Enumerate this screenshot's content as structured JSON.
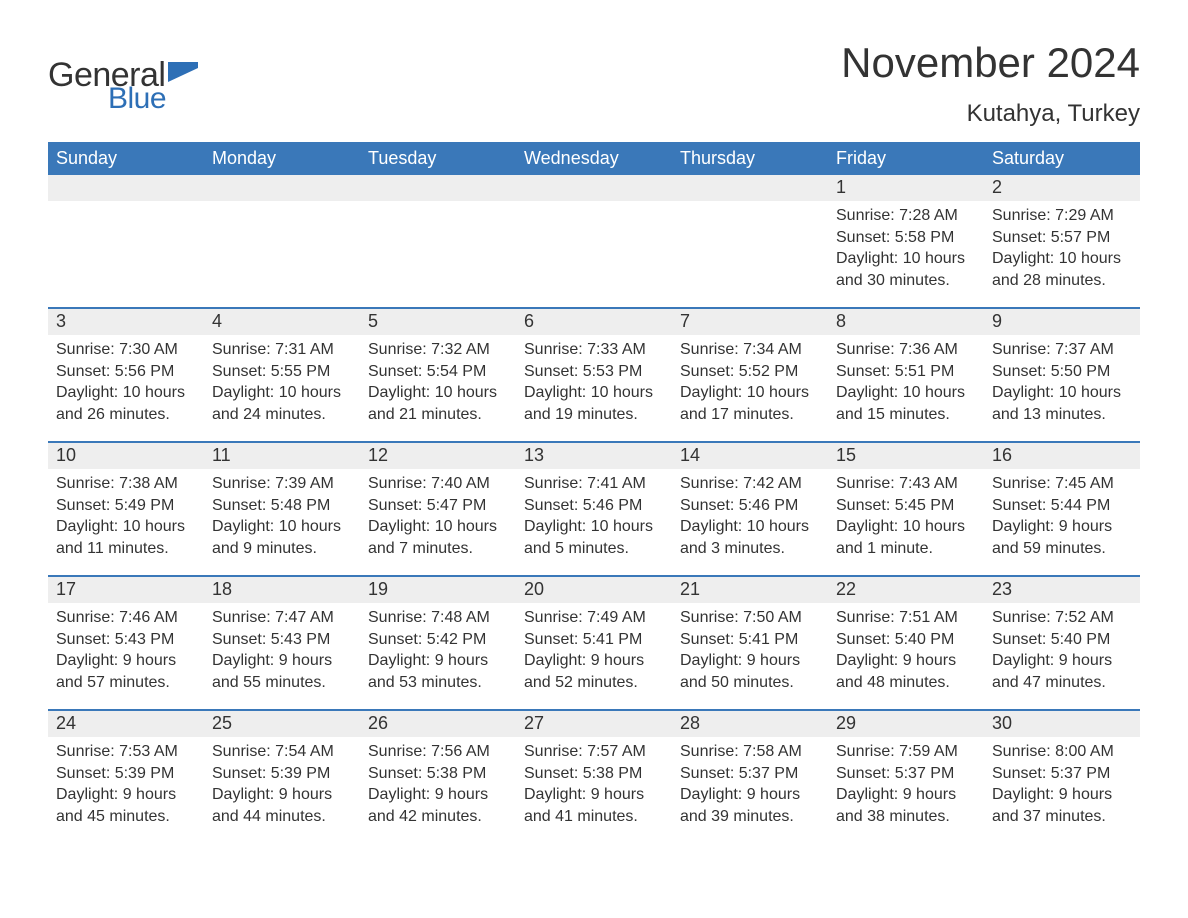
{
  "logo": {
    "word1": "General",
    "word2": "Blue",
    "flag_color": "#2d6fb6",
    "text_color_dark": "#333333",
    "text_color_blue": "#2d6fb6"
  },
  "title": "November 2024",
  "location": "Kutahya, Turkey",
  "colors": {
    "header_bg": "#3a78b9",
    "header_text": "#ffffff",
    "daynum_bg": "#eeeeee",
    "page_bg": "#ffffff",
    "body_text": "#333333",
    "divider": "#3a78b9"
  },
  "weekdays": [
    "Sunday",
    "Monday",
    "Tuesday",
    "Wednesday",
    "Thursday",
    "Friday",
    "Saturday"
  ],
  "weeks": [
    [
      {
        "n": "",
        "sunrise": "",
        "sunset": "",
        "daylight": ""
      },
      {
        "n": "",
        "sunrise": "",
        "sunset": "",
        "daylight": ""
      },
      {
        "n": "",
        "sunrise": "",
        "sunset": "",
        "daylight": ""
      },
      {
        "n": "",
        "sunrise": "",
        "sunset": "",
        "daylight": ""
      },
      {
        "n": "",
        "sunrise": "",
        "sunset": "",
        "daylight": ""
      },
      {
        "n": "1",
        "sunrise": "Sunrise: 7:28 AM",
        "sunset": "Sunset: 5:58 PM",
        "daylight": "Daylight: 10 hours and 30 minutes."
      },
      {
        "n": "2",
        "sunrise": "Sunrise: 7:29 AM",
        "sunset": "Sunset: 5:57 PM",
        "daylight": "Daylight: 10 hours and 28 minutes."
      }
    ],
    [
      {
        "n": "3",
        "sunrise": "Sunrise: 7:30 AM",
        "sunset": "Sunset: 5:56 PM",
        "daylight": "Daylight: 10 hours and 26 minutes."
      },
      {
        "n": "4",
        "sunrise": "Sunrise: 7:31 AM",
        "sunset": "Sunset: 5:55 PM",
        "daylight": "Daylight: 10 hours and 24 minutes."
      },
      {
        "n": "5",
        "sunrise": "Sunrise: 7:32 AM",
        "sunset": "Sunset: 5:54 PM",
        "daylight": "Daylight: 10 hours and 21 minutes."
      },
      {
        "n": "6",
        "sunrise": "Sunrise: 7:33 AM",
        "sunset": "Sunset: 5:53 PM",
        "daylight": "Daylight: 10 hours and 19 minutes."
      },
      {
        "n": "7",
        "sunrise": "Sunrise: 7:34 AM",
        "sunset": "Sunset: 5:52 PM",
        "daylight": "Daylight: 10 hours and 17 minutes."
      },
      {
        "n": "8",
        "sunrise": "Sunrise: 7:36 AM",
        "sunset": "Sunset: 5:51 PM",
        "daylight": "Daylight: 10 hours and 15 minutes."
      },
      {
        "n": "9",
        "sunrise": "Sunrise: 7:37 AM",
        "sunset": "Sunset: 5:50 PM",
        "daylight": "Daylight: 10 hours and 13 minutes."
      }
    ],
    [
      {
        "n": "10",
        "sunrise": "Sunrise: 7:38 AM",
        "sunset": "Sunset: 5:49 PM",
        "daylight": "Daylight: 10 hours and 11 minutes."
      },
      {
        "n": "11",
        "sunrise": "Sunrise: 7:39 AM",
        "sunset": "Sunset: 5:48 PM",
        "daylight": "Daylight: 10 hours and 9 minutes."
      },
      {
        "n": "12",
        "sunrise": "Sunrise: 7:40 AM",
        "sunset": "Sunset: 5:47 PM",
        "daylight": "Daylight: 10 hours and 7 minutes."
      },
      {
        "n": "13",
        "sunrise": "Sunrise: 7:41 AM",
        "sunset": "Sunset: 5:46 PM",
        "daylight": "Daylight: 10 hours and 5 minutes."
      },
      {
        "n": "14",
        "sunrise": "Sunrise: 7:42 AM",
        "sunset": "Sunset: 5:46 PM",
        "daylight": "Daylight: 10 hours and 3 minutes."
      },
      {
        "n": "15",
        "sunrise": "Sunrise: 7:43 AM",
        "sunset": "Sunset: 5:45 PM",
        "daylight": "Daylight: 10 hours and 1 minute."
      },
      {
        "n": "16",
        "sunrise": "Sunrise: 7:45 AM",
        "sunset": "Sunset: 5:44 PM",
        "daylight": "Daylight: 9 hours and 59 minutes."
      }
    ],
    [
      {
        "n": "17",
        "sunrise": "Sunrise: 7:46 AM",
        "sunset": "Sunset: 5:43 PM",
        "daylight": "Daylight: 9 hours and 57 minutes."
      },
      {
        "n": "18",
        "sunrise": "Sunrise: 7:47 AM",
        "sunset": "Sunset: 5:43 PM",
        "daylight": "Daylight: 9 hours and 55 minutes."
      },
      {
        "n": "19",
        "sunrise": "Sunrise: 7:48 AM",
        "sunset": "Sunset: 5:42 PM",
        "daylight": "Daylight: 9 hours and 53 minutes."
      },
      {
        "n": "20",
        "sunrise": "Sunrise: 7:49 AM",
        "sunset": "Sunset: 5:41 PM",
        "daylight": "Daylight: 9 hours and 52 minutes."
      },
      {
        "n": "21",
        "sunrise": "Sunrise: 7:50 AM",
        "sunset": "Sunset: 5:41 PM",
        "daylight": "Daylight: 9 hours and 50 minutes."
      },
      {
        "n": "22",
        "sunrise": "Sunrise: 7:51 AM",
        "sunset": "Sunset: 5:40 PM",
        "daylight": "Daylight: 9 hours and 48 minutes."
      },
      {
        "n": "23",
        "sunrise": "Sunrise: 7:52 AM",
        "sunset": "Sunset: 5:40 PM",
        "daylight": "Daylight: 9 hours and 47 minutes."
      }
    ],
    [
      {
        "n": "24",
        "sunrise": "Sunrise: 7:53 AM",
        "sunset": "Sunset: 5:39 PM",
        "daylight": "Daylight: 9 hours and 45 minutes."
      },
      {
        "n": "25",
        "sunrise": "Sunrise: 7:54 AM",
        "sunset": "Sunset: 5:39 PM",
        "daylight": "Daylight: 9 hours and 44 minutes."
      },
      {
        "n": "26",
        "sunrise": "Sunrise: 7:56 AM",
        "sunset": "Sunset: 5:38 PM",
        "daylight": "Daylight: 9 hours and 42 minutes."
      },
      {
        "n": "27",
        "sunrise": "Sunrise: 7:57 AM",
        "sunset": "Sunset: 5:38 PM",
        "daylight": "Daylight: 9 hours and 41 minutes."
      },
      {
        "n": "28",
        "sunrise": "Sunrise: 7:58 AM",
        "sunset": "Sunset: 5:37 PM",
        "daylight": "Daylight: 9 hours and 39 minutes."
      },
      {
        "n": "29",
        "sunrise": "Sunrise: 7:59 AM",
        "sunset": "Sunset: 5:37 PM",
        "daylight": "Daylight: 9 hours and 38 minutes."
      },
      {
        "n": "30",
        "sunrise": "Sunrise: 8:00 AM",
        "sunset": "Sunset: 5:37 PM",
        "daylight": "Daylight: 9 hours and 37 minutes."
      }
    ]
  ]
}
